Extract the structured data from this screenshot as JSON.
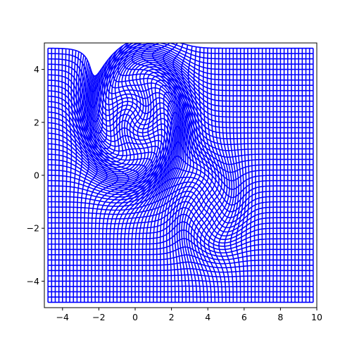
{
  "chart_data": {
    "type": "line",
    "title": "",
    "xlabel": "",
    "ylabel": "",
    "xlim": [
      -5,
      10
    ],
    "ylim": [
      -5,
      5
    ],
    "xticks": [
      -4,
      -2,
      0,
      2,
      4,
      6,
      8,
      10
    ],
    "yticks": [
      -4,
      -2,
      0,
      2,
      4
    ],
    "xtick_labels": [
      "−4",
      "−2",
      "0",
      "2",
      "4",
      "6",
      "8",
      "10"
    ],
    "ytick_labels": [
      "−4",
      "−2",
      "0",
      "2",
      "4"
    ],
    "grid": false,
    "legend": "none",
    "line_color": "#0000ff",
    "description_of_series": "Deformed rectangular mesh: horizontal and vertical grid lines over x in [-4.8, 9.8], y in [-4.8, 4.8] at spacing 0.2, displaced by two vortex-like features",
    "mesh": {
      "x_range": [
        -4.8,
        9.8
      ],
      "y_range": [
        -4.8,
        4.8
      ],
      "spacing": 0.2
    },
    "features": [
      {
        "center": [
          0,
          2.2
        ],
        "strength": 2.1,
        "radius": 1.6,
        "width": 1.3
      },
      {
        "center": [
          4,
          -1.3
        ],
        "strength": -0.9,
        "radius": 0.85,
        "width": 1.1
      }
    ]
  }
}
